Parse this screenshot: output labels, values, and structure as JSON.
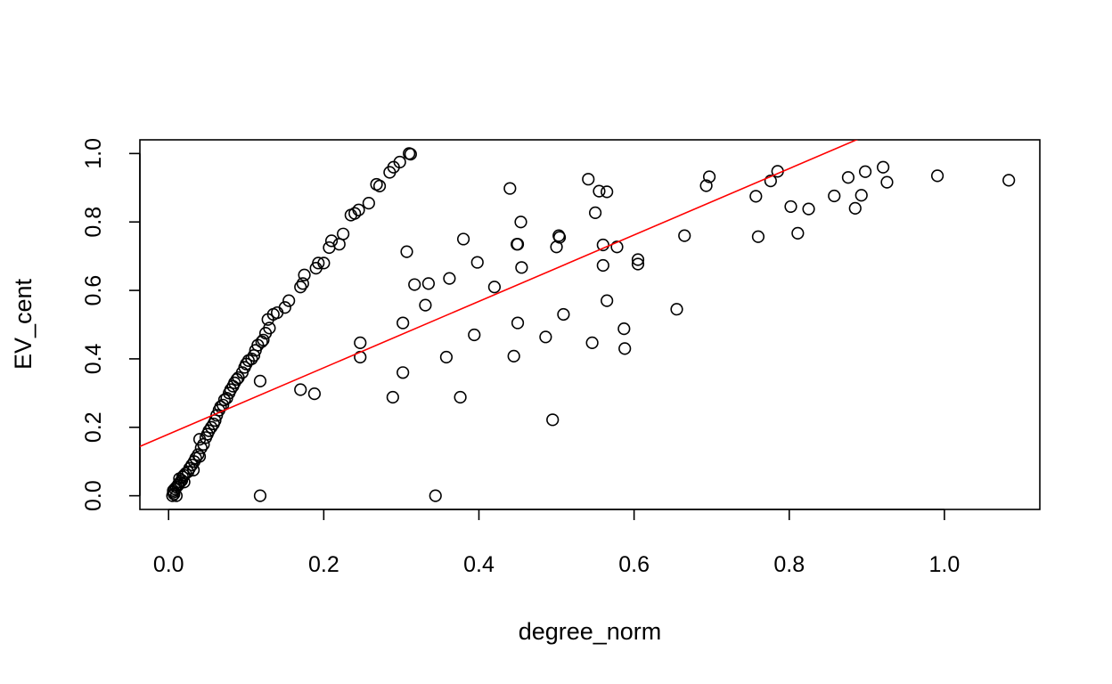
{
  "chart_data": {
    "type": "scatter",
    "xlabel": "degree_norm",
    "ylabel": "EV_cent",
    "xlim": [
      -0.037,
      1.123
    ],
    "ylim": [
      -0.04,
      1.04
    ],
    "x_ticks": [
      0.0,
      0.2,
      0.4,
      0.6,
      0.8,
      1.0
    ],
    "x_tick_labels": [
      "0.0",
      "0.2",
      "0.4",
      "0.6",
      "0.8",
      "1.0"
    ],
    "y_ticks": [
      0.0,
      0.2,
      0.4,
      0.6,
      0.8,
      1.0
    ],
    "y_tick_labels": [
      "0.0",
      "0.2",
      "0.4",
      "0.6",
      "0.8",
      "1.0"
    ],
    "grid": false,
    "point_color": "#000000",
    "fit_line": {
      "intercept": 0.18,
      "slope": 0.97,
      "color": "#ff0000"
    },
    "series": [
      {
        "values": [
          [
            0.005,
            0.0
          ],
          [
            0.007,
            0.005
          ],
          [
            0.006,
            0.01
          ],
          [
            0.006,
            0.015
          ],
          [
            0.01,
            0.0
          ],
          [
            0.008,
            0.02
          ],
          [
            0.01,
            0.025
          ],
          [
            0.012,
            0.03
          ],
          [
            0.013,
            0.035
          ],
          [
            0.015,
            0.04
          ],
          [
            0.014,
            0.05
          ],
          [
            0.017,
            0.045
          ],
          [
            0.018,
            0.055
          ],
          [
            0.02,
            0.06
          ],
          [
            0.022,
            0.065
          ],
          [
            0.02,
            0.04
          ],
          [
            0.025,
            0.07
          ],
          [
            0.027,
            0.08
          ],
          [
            0.03,
            0.09
          ],
          [
            0.032,
            0.075
          ],
          [
            0.035,
            0.11
          ],
          [
            0.033,
            0.1
          ],
          [
            0.038,
            0.12
          ],
          [
            0.04,
            0.115
          ],
          [
            0.042,
            0.14
          ],
          [
            0.045,
            0.15
          ],
          [
            0.04,
            0.165
          ],
          [
            0.048,
            0.17
          ],
          [
            0.05,
            0.18
          ],
          [
            0.052,
            0.19
          ],
          [
            0.055,
            0.2
          ],
          [
            0.058,
            0.21
          ],
          [
            0.06,
            0.22
          ],
          [
            0.062,
            0.235
          ],
          [
            0.065,
            0.25
          ],
          [
            0.067,
            0.26
          ],
          [
            0.07,
            0.265
          ],
          [
            0.072,
            0.28
          ],
          [
            0.075,
            0.285
          ],
          [
            0.078,
            0.3
          ],
          [
            0.08,
            0.31
          ],
          [
            0.083,
            0.32
          ],
          [
            0.085,
            0.33
          ],
          [
            0.088,
            0.34
          ],
          [
            0.09,
            0.345
          ],
          [
            0.095,
            0.36
          ],
          [
            0.098,
            0.375
          ],
          [
            0.1,
            0.385
          ],
          [
            0.103,
            0.395
          ],
          [
            0.107,
            0.4
          ],
          [
            0.11,
            0.41
          ],
          [
            0.112,
            0.425
          ],
          [
            0.115,
            0.44
          ],
          [
            0.12,
            0.45
          ],
          [
            0.122,
            0.455
          ],
          [
            0.125,
            0.475
          ],
          [
            0.13,
            0.49
          ],
          [
            0.128,
            0.515
          ],
          [
            0.135,
            0.53
          ],
          [
            0.14,
            0.535
          ],
          [
            0.15,
            0.55
          ],
          [
            0.155,
            0.57
          ],
          [
            0.17,
            0.61
          ],
          [
            0.173,
            0.62
          ],
          [
            0.175,
            0.645
          ],
          [
            0.19,
            0.665
          ],
          [
            0.193,
            0.68
          ],
          [
            0.2,
            0.68
          ],
          [
            0.207,
            0.725
          ],
          [
            0.21,
            0.745
          ],
          [
            0.22,
            0.735
          ],
          [
            0.225,
            0.765
          ],
          [
            0.235,
            0.82
          ],
          [
            0.24,
            0.825
          ],
          [
            0.245,
            0.835
          ],
          [
            0.258,
            0.855
          ],
          [
            0.268,
            0.91
          ],
          [
            0.272,
            0.905
          ],
          [
            0.285,
            0.945
          ],
          [
            0.29,
            0.96
          ],
          [
            0.298,
            0.975
          ],
          [
            0.31,
            1.0
          ],
          [
            0.312,
            0.998
          ],
          [
            0.118,
            0.335
          ],
          [
            0.118,
            0.0
          ],
          [
            0.17,
            0.31
          ],
          [
            0.188,
            0.298
          ],
          [
            0.247,
            0.447
          ],
          [
            0.247,
            0.405
          ],
          [
            0.289,
            0.288
          ],
          [
            0.302,
            0.36
          ],
          [
            0.302,
            0.505
          ],
          [
            0.307,
            0.713
          ],
          [
            0.317,
            0.617
          ],
          [
            0.331,
            0.557
          ],
          [
            0.335,
            0.62
          ],
          [
            0.344,
            0.0
          ],
          [
            0.358,
            0.405
          ],
          [
            0.362,
            0.635
          ],
          [
            0.376,
            0.288
          ],
          [
            0.38,
            0.75
          ],
          [
            0.394,
            0.47
          ],
          [
            0.398,
            0.682
          ],
          [
            0.42,
            0.61
          ],
          [
            0.44,
            0.898
          ],
          [
            0.445,
            0.408
          ],
          [
            0.449,
            0.735
          ],
          [
            0.45,
            0.505
          ],
          [
            0.45,
            0.735
          ],
          [
            0.454,
            0.8
          ],
          [
            0.455,
            0.667
          ],
          [
            0.486,
            0.464
          ],
          [
            0.495,
            0.222
          ],
          [
            0.5,
            0.727
          ],
          [
            0.503,
            0.76
          ],
          [
            0.504,
            0.755
          ],
          [
            0.509,
            0.53
          ],
          [
            0.541,
            0.925
          ],
          [
            0.546,
            0.447
          ],
          [
            0.55,
            0.827
          ],
          [
            0.555,
            0.89
          ],
          [
            0.56,
            0.733
          ],
          [
            0.56,
            0.673
          ],
          [
            0.565,
            0.888
          ],
          [
            0.565,
            0.57
          ],
          [
            0.578,
            0.727
          ],
          [
            0.587,
            0.488
          ],
          [
            0.588,
            0.43
          ],
          [
            0.605,
            0.69
          ],
          [
            0.605,
            0.677
          ],
          [
            0.655,
            0.545
          ],
          [
            0.665,
            0.76
          ],
          [
            0.693,
            0.906
          ],
          [
            0.697,
            0.932
          ],
          [
            0.757,
            0.875
          ],
          [
            0.76,
            0.757
          ],
          [
            0.776,
            0.92
          ],
          [
            0.785,
            0.948
          ],
          [
            0.802,
            0.845
          ],
          [
            0.811,
            0.767
          ],
          [
            0.825,
            0.838
          ],
          [
            0.858,
            0.876
          ],
          [
            0.876,
            0.93
          ],
          [
            0.885,
            0.84
          ],
          [
            0.893,
            0.878
          ],
          [
            0.898,
            0.947
          ],
          [
            0.921,
            0.96
          ],
          [
            0.926,
            0.916
          ],
          [
            0.991,
            0.935
          ],
          [
            1.083,
            0.922
          ]
        ]
      }
    ]
  }
}
